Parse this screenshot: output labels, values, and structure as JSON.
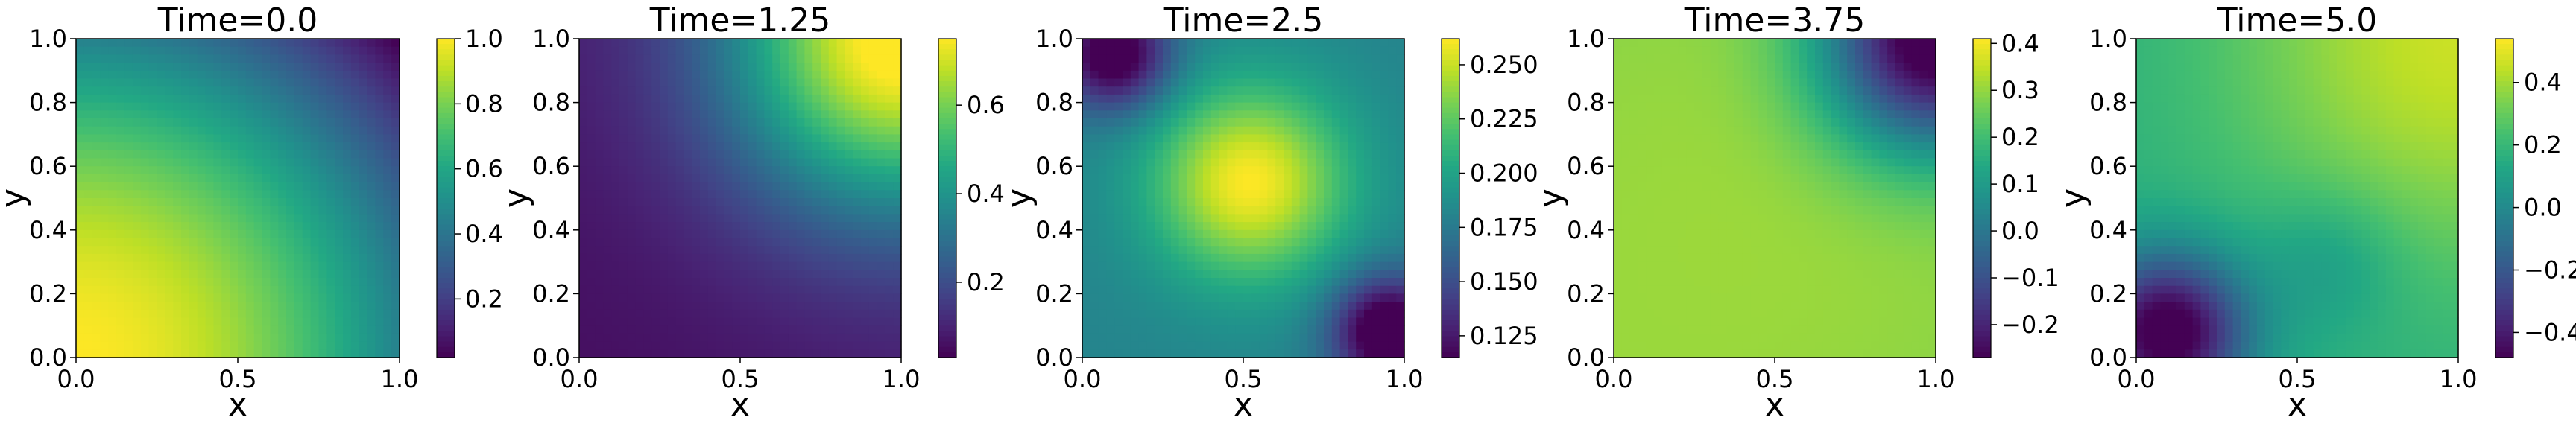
{
  "chart_data": [
    {
      "type": "heatmap",
      "title": "Time=0.0",
      "xlabel": "x",
      "ylabel": "y",
      "xlim": [
        0.0,
        1.0
      ],
      "ylim": [
        0.0,
        1.0
      ],
      "x_ticks": [
        "0.0",
        "0.5",
        "1.0"
      ],
      "y_ticks": [
        "0.0",
        "0.2",
        "0.4",
        "0.6",
        "0.8",
        "1.0"
      ],
      "colormap": "viridis",
      "colorbar": {
        "min": 0.02,
        "max": 1.0,
        "ticks": [
          0.2,
          0.4,
          0.6,
          0.8,
          1.0
        ],
        "tick_labels": [
          "0.2",
          "0.4",
          "0.6",
          "0.8",
          "1.0"
        ]
      },
      "grid": false
    },
    {
      "type": "heatmap",
      "title": "Time=1.25",
      "xlabel": "x",
      "ylabel": "y",
      "xlim": [
        0.0,
        1.0
      ],
      "ylim": [
        0.0,
        1.0
      ],
      "x_ticks": [
        "0.0",
        "0.5",
        "1.0"
      ],
      "y_ticks": [
        "0.0",
        "0.2",
        "0.4",
        "0.6",
        "0.8",
        "1.0"
      ],
      "colormap": "viridis",
      "colorbar": {
        "min": 0.03,
        "max": 0.75,
        "ticks": [
          0.2,
          0.4,
          0.6
        ],
        "tick_labels": [
          "0.2",
          "0.4",
          "0.6"
        ]
      },
      "grid": false
    },
    {
      "type": "heatmap",
      "title": "Time=2.5",
      "xlabel": "x",
      "ylabel": "y",
      "xlim": [
        0.0,
        1.0
      ],
      "ylim": [
        0.0,
        1.0
      ],
      "x_ticks": [
        "0.0",
        "0.5",
        "1.0"
      ],
      "y_ticks": [
        "0.0",
        "0.2",
        "0.4",
        "0.6",
        "0.8",
        "1.0"
      ],
      "colormap": "viridis",
      "colorbar": {
        "min": 0.115,
        "max": 0.262,
        "ticks": [
          0.125,
          0.15,
          0.175,
          0.2,
          0.225,
          0.25
        ],
        "tick_labels": [
          "0.125",
          "0.150",
          "0.175",
          "0.200",
          "0.225",
          "0.250"
        ]
      },
      "grid": false
    },
    {
      "type": "heatmap",
      "title": "Time=3.75",
      "xlabel": "x",
      "ylabel": "y",
      "xlim": [
        0.0,
        1.0
      ],
      "ylim": [
        0.0,
        1.0
      ],
      "x_ticks": [
        "0.0",
        "0.5",
        "1.0"
      ],
      "y_ticks": [
        "0.0",
        "0.2",
        "0.4",
        "0.6",
        "0.8",
        "1.0"
      ],
      "colormap": "viridis",
      "colorbar": {
        "min": -0.27,
        "max": 0.41,
        "ticks": [
          -0.2,
          -0.1,
          0.0,
          0.1,
          0.2,
          0.3,
          0.4
        ],
        "tick_labels": [
          "−0.2",
          "−0.1",
          "0.0",
          "0.1",
          "0.2",
          "0.3",
          "0.4"
        ]
      },
      "grid": false
    },
    {
      "type": "heatmap",
      "title": "Time=5.0",
      "xlabel": "x",
      "ylabel": "y",
      "xlim": [
        0.0,
        1.0
      ],
      "ylim": [
        0.0,
        1.0
      ],
      "x_ticks": [
        "0.0",
        "0.5",
        "1.0"
      ],
      "y_ticks": [
        "0.0",
        "0.2",
        "0.4",
        "0.6",
        "0.8",
        "1.0"
      ],
      "colormap": "viridis",
      "colorbar": {
        "min": -0.48,
        "max": 0.54,
        "ticks": [
          -0.4,
          -0.2,
          0.0,
          0.2,
          0.4
        ],
        "tick_labels": [
          "−0.4",
          "−0.2",
          "0.0",
          "0.2",
          "0.4"
        ]
      },
      "grid": false
    }
  ]
}
